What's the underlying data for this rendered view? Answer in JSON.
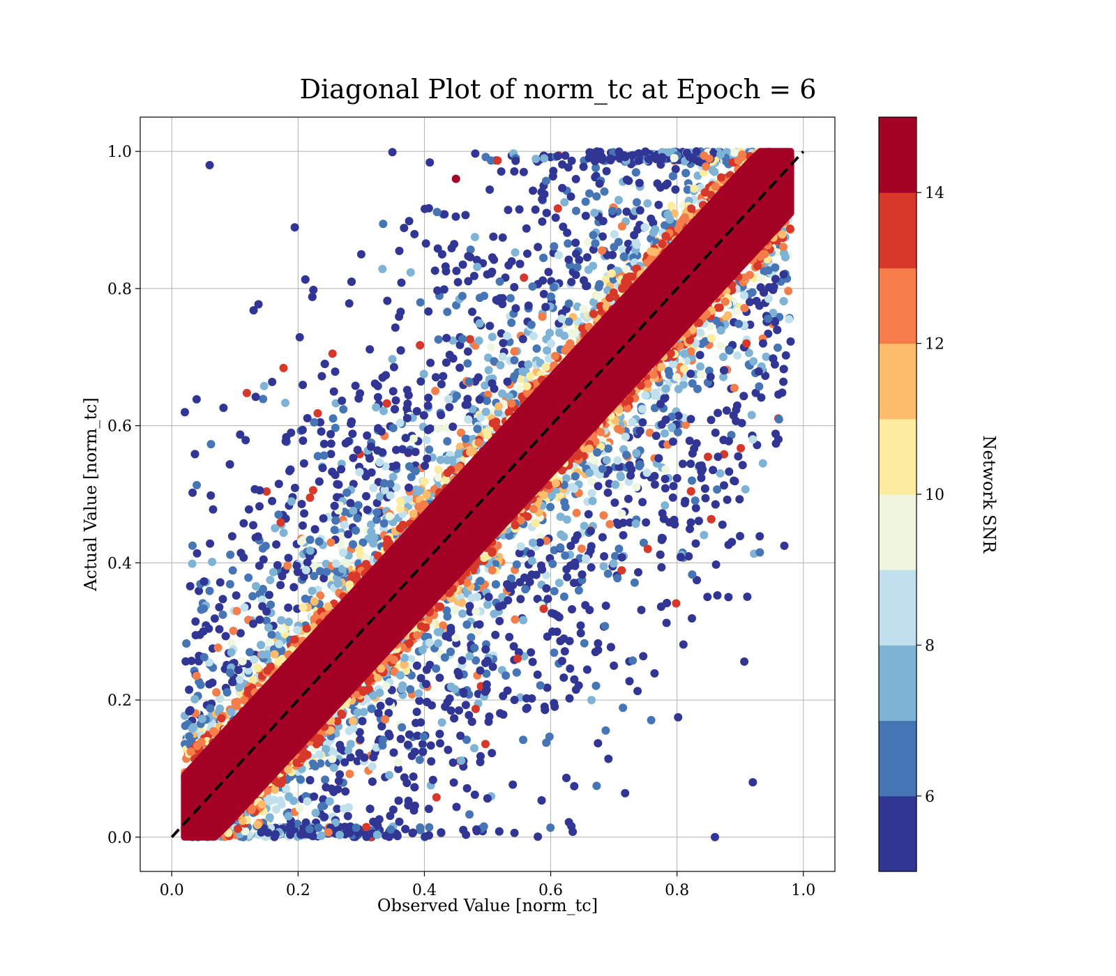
{
  "chart_data": {
    "type": "scatter",
    "title": "Diagonal Plot of norm_tc at Epoch = 6",
    "xlabel": "Observed Value [norm_tc]",
    "ylabel": "Actual Value [norm_tc]",
    "xlim": [
      -0.05,
      1.05
    ],
    "ylim": [
      -0.05,
      1.05
    ],
    "xticks": [
      "0.0",
      "0.2",
      "0.4",
      "0.6",
      "0.8",
      "1.0"
    ],
    "yticks": [
      "0.0",
      "0.2",
      "0.4",
      "0.6",
      "0.8",
      "1.0"
    ],
    "grid": true,
    "reference_line": {
      "x": [
        0,
        1
      ],
      "y": [
        0,
        1
      ],
      "style": "dashed",
      "color": "#000000"
    },
    "colorbar": {
      "label": "Network SNR",
      "range": [
        5,
        15
      ],
      "ticks": [
        "6",
        "8",
        "10",
        "12",
        "14"
      ],
      "colors": [
        "#313695",
        "#4575b4",
        "#74add1",
        "#abd9e9",
        "#e0f3f8",
        "#ffffbf",
        "#fee090",
        "#fdae61",
        "#f46d43",
        "#d73027",
        "#a50026"
      ],
      "bins": [
        {
          "from": 5,
          "to": 6,
          "color": "#313695"
        },
        {
          "from": 6,
          "to": 7,
          "color": "#4575b4"
        },
        {
          "from": 7,
          "to": 8,
          "color": "#7fb3d6"
        },
        {
          "from": 8,
          "to": 9,
          "color": "#bfe0ec"
        },
        {
          "from": 9,
          "to": 10,
          "color": "#eef6e0"
        },
        {
          "from": 10,
          "to": 11,
          "color": "#fdeba0"
        },
        {
          "from": 11,
          "to": 12,
          "color": "#fdbb6c"
        },
        {
          "from": 12,
          "to": 13,
          "color": "#f47d4a"
        },
        {
          "from": 13,
          "to": 14,
          "color": "#d8382a"
        },
        {
          "from": 14,
          "to": 15,
          "color": "#a50026"
        }
      ]
    },
    "dense_band": {
      "color": "#a50026",
      "snr": 15,
      "width": 0.07
    },
    "points_sample": [
      {
        "x": 0.06,
        "y": 0.98,
        "snr": 5
      },
      {
        "x": 0.05,
        "y": 0.3,
        "snr": 5
      },
      {
        "x": 0.92,
        "y": 0.08,
        "snr": 5
      },
      {
        "x": 0.92,
        "y": 0.58,
        "snr": 8
      },
      {
        "x": 0.91,
        "y": 0.72,
        "snr": 13
      },
      {
        "x": 0.86,
        "y": 0.0,
        "snr": 5
      },
      {
        "x": 0.45,
        "y": 0.96,
        "snr": 14
      },
      {
        "x": 0.3,
        "y": 0.85,
        "snr": 5
      },
      {
        "x": 0.7,
        "y": 0.25,
        "snr": 5
      }
    ]
  }
}
